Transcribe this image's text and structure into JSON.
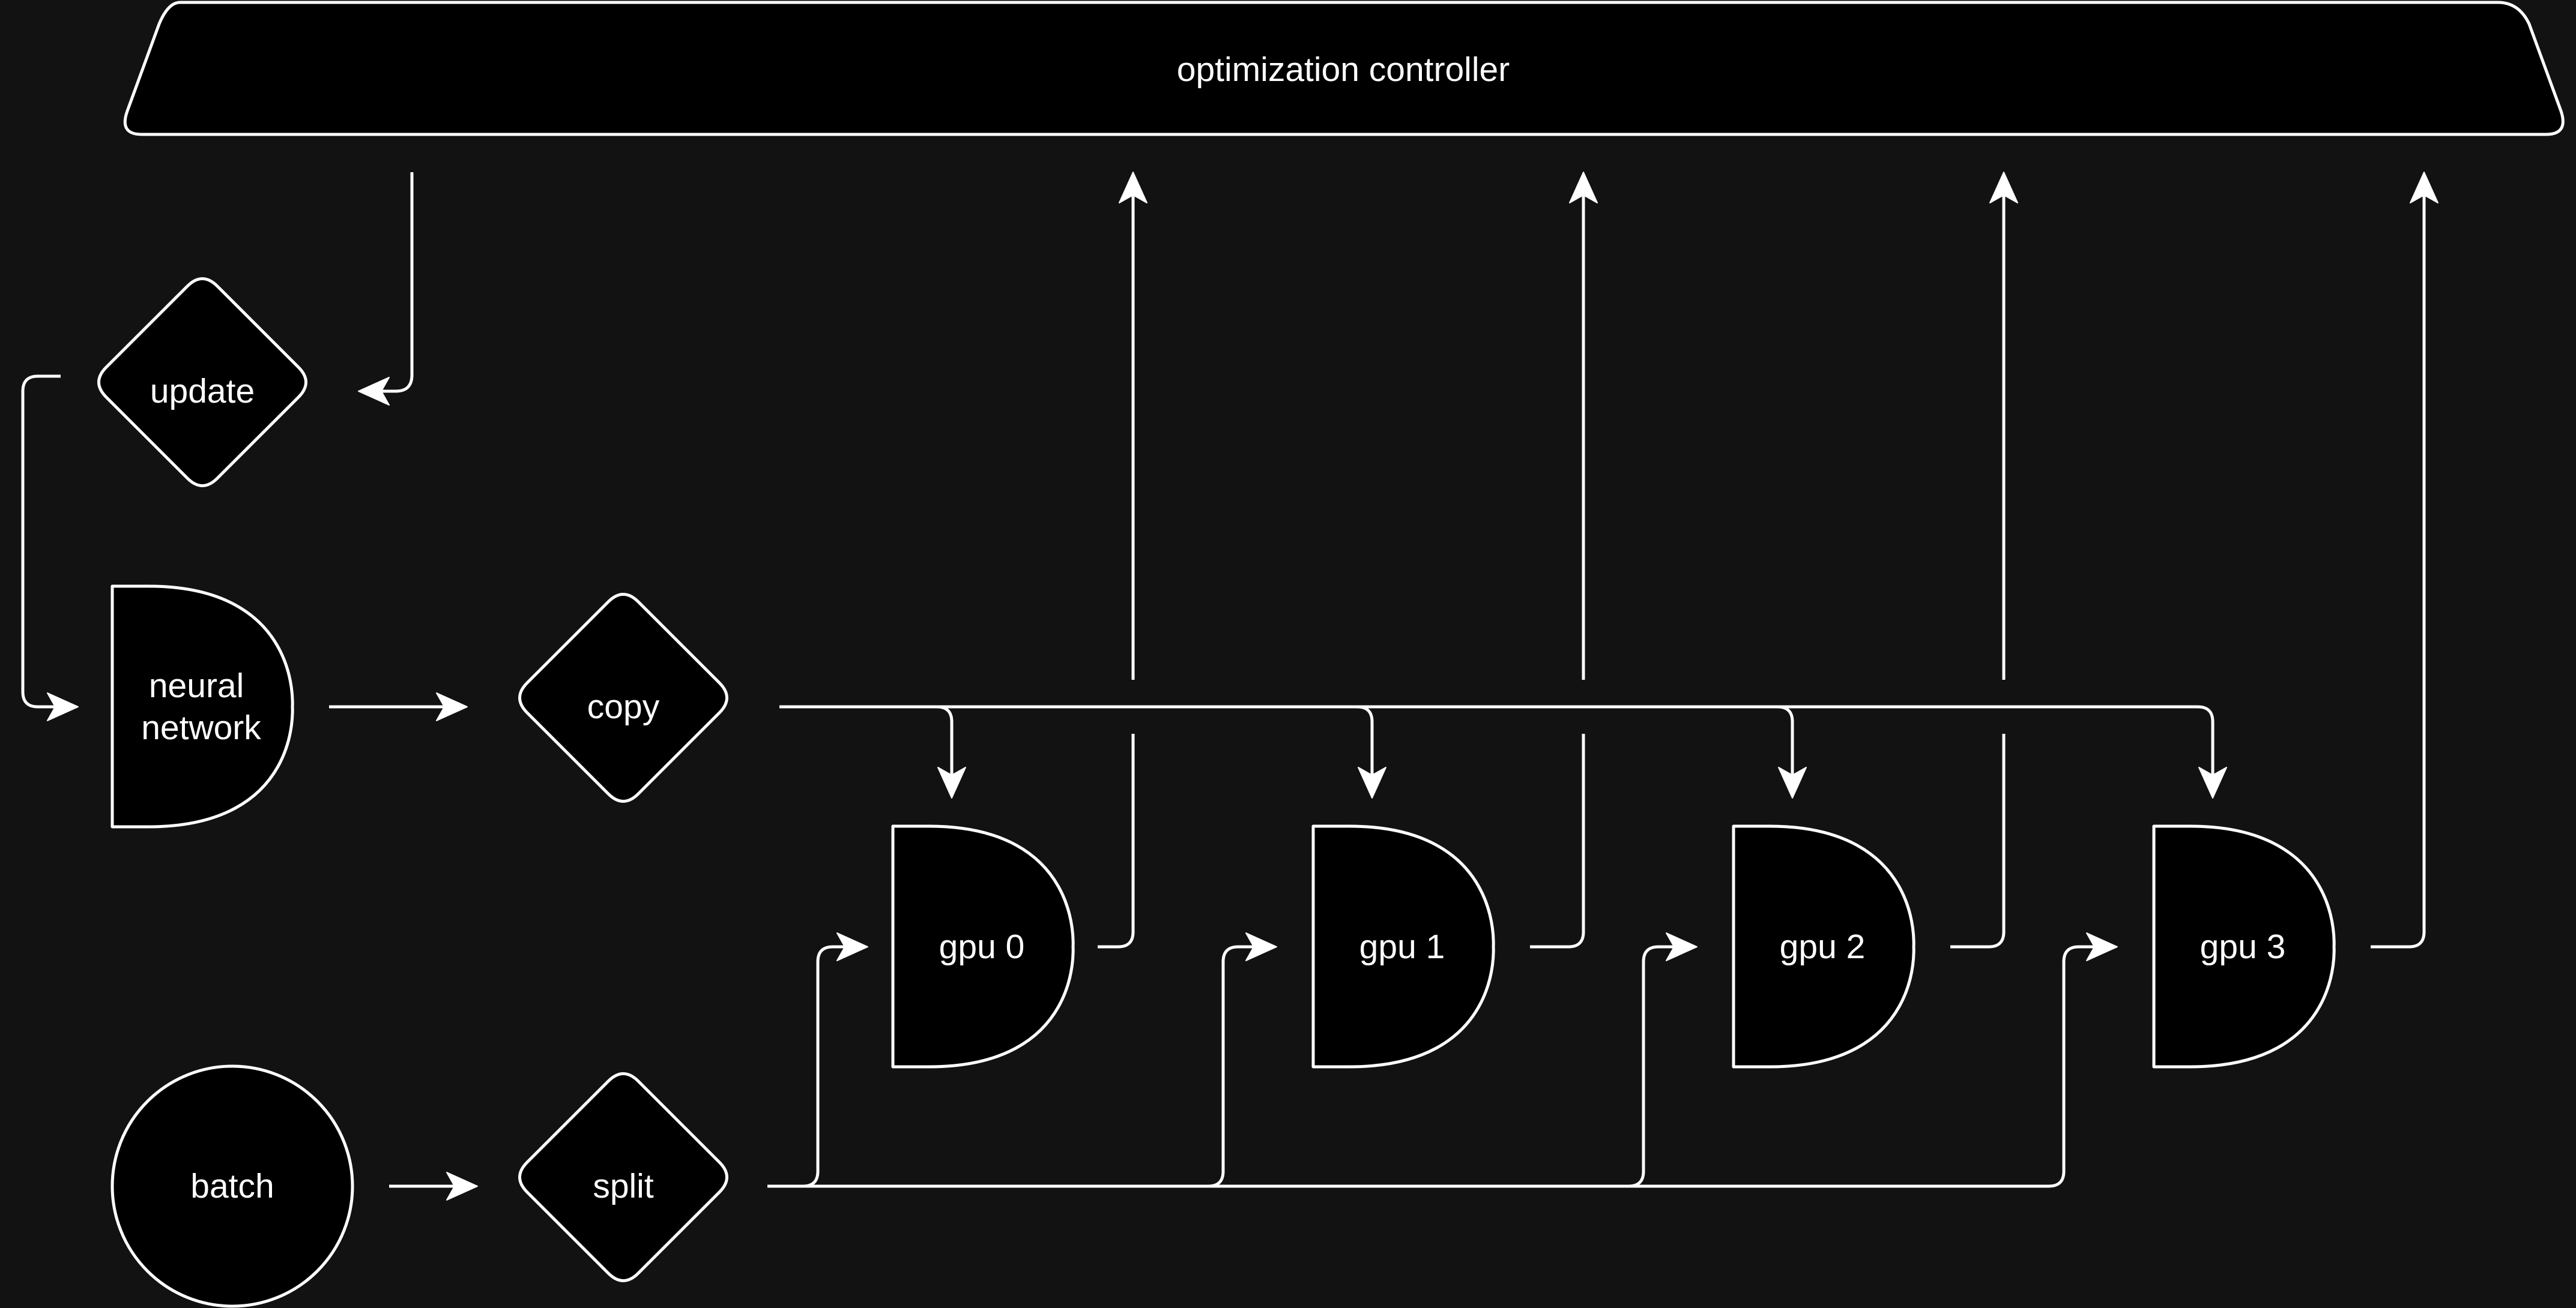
{
  "diagram": {
    "colors": {
      "background": "#121212",
      "node_fill": "#000000",
      "stroke": "#ffffff",
      "text": "#ffffff"
    },
    "nodes": {
      "controller": {
        "label": "optimization controller",
        "shape": "trapezoid"
      },
      "update": {
        "label": "update",
        "shape": "diamond"
      },
      "neural_network": {
        "label_lines": [
          "neural",
          "network"
        ],
        "shape": "delay"
      },
      "copy": {
        "label": "copy",
        "shape": "diamond"
      },
      "batch": {
        "label": "batch",
        "shape": "circle"
      },
      "split": {
        "label": "split",
        "shape": "diamond"
      },
      "gpus": [
        {
          "label": "gpu 0",
          "shape": "delay"
        },
        {
          "label": "gpu 1",
          "shape": "delay"
        },
        {
          "label": "gpu 2",
          "shape": "delay"
        },
        {
          "label": "gpu 3",
          "shape": "delay"
        }
      ]
    },
    "edges": [
      {
        "from": "controller",
        "to": "update"
      },
      {
        "from": "update",
        "to": "neural_network"
      },
      {
        "from": "neural_network",
        "to": "copy"
      },
      {
        "from": "copy",
        "to": "gpu 0"
      },
      {
        "from": "copy",
        "to": "gpu 1"
      },
      {
        "from": "copy",
        "to": "gpu 2"
      },
      {
        "from": "copy",
        "to": "gpu 3"
      },
      {
        "from": "batch",
        "to": "split"
      },
      {
        "from": "split",
        "to": "gpu 0"
      },
      {
        "from": "split",
        "to": "gpu 1"
      },
      {
        "from": "split",
        "to": "gpu 2"
      },
      {
        "from": "split",
        "to": "gpu 3"
      },
      {
        "from": "gpu 0",
        "to": "controller"
      },
      {
        "from": "gpu 1",
        "to": "controller"
      },
      {
        "from": "gpu 2",
        "to": "controller"
      },
      {
        "from": "gpu 3",
        "to": "controller"
      }
    ]
  }
}
